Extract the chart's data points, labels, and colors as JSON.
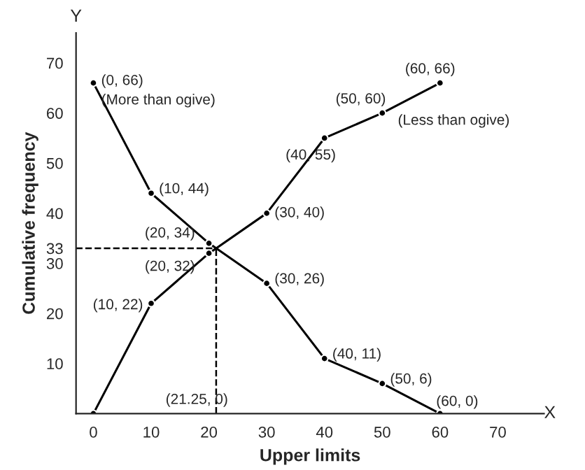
{
  "chart_data": {
    "type": "line",
    "xlabel": "Upper limits",
    "ylabel": "Cumulative frequency",
    "xlim": [
      -3,
      78
    ],
    "ylim": [
      0,
      76
    ],
    "xticks": [
      0,
      10,
      20,
      30,
      40,
      50,
      60,
      70
    ],
    "yticks": [
      10,
      20,
      30,
      33,
      40,
      50,
      60,
      70
    ],
    "marker": "circle",
    "line_style": "solid",
    "grid": false,
    "legend": false,
    "series": [
      {
        "color": "#000000",
        "x": [
          0,
          10,
          20,
          30,
          40,
          50,
          60
        ],
        "values": [
          66,
          44,
          34,
          26,
          11,
          6,
          0
        ]
      },
      {
        "color": "#000000",
        "x": [
          0,
          10,
          20,
          30,
          40,
          50,
          60
        ],
        "values": [
          0,
          22,
          32,
          40,
          55,
          60,
          66
        ]
      }
    ],
    "ref_lines": [
      {
        "axis": "x",
        "value": 21.25,
        "line_style": "dashed",
        "color": "#000000"
      },
      {
        "axis": "y",
        "value": 33,
        "line_style": "dashed",
        "color": "#000000"
      }
    ],
    "annotations": [
      {
        "text": "(0, 66)",
        "x": 0,
        "y": 66
      },
      {
        "text": "(More than ogive)",
        "x": 0,
        "y": 66
      },
      {
        "text": "(10, 44)",
        "x": 10,
        "y": 44
      },
      {
        "text": "(20, 34)",
        "x": 20,
        "y": 34
      },
      {
        "text": "(20, 32)",
        "x": 20,
        "y": 32
      },
      {
        "text": "(30, 26)",
        "x": 30,
        "y": 26
      },
      {
        "text": "(40, 11)",
        "x": 40,
        "y": 11
      },
      {
        "text": "(50, 6)",
        "x": 50,
        "y": 6
      },
      {
        "text": "(60, 0)",
        "x": 60,
        "y": 0
      },
      {
        "text": "(10, 22)",
        "x": 10,
        "y": 22
      },
      {
        "text": "(30, 40)",
        "x": 30,
        "y": 40
      },
      {
        "text": "(40, 55)",
        "x": 40,
        "y": 55
      },
      {
        "text": "(50, 60)",
        "x": 50,
        "y": 60
      },
      {
        "text": "(60, 66)",
        "x": 60,
        "y": 66
      },
      {
        "text": "(Less than ogive)",
        "x": 50,
        "y": 60
      },
      {
        "text": "(21.25, 0)",
        "x": 21.25,
        "y": 0
      },
      "X",
      "Y"
    ]
  }
}
